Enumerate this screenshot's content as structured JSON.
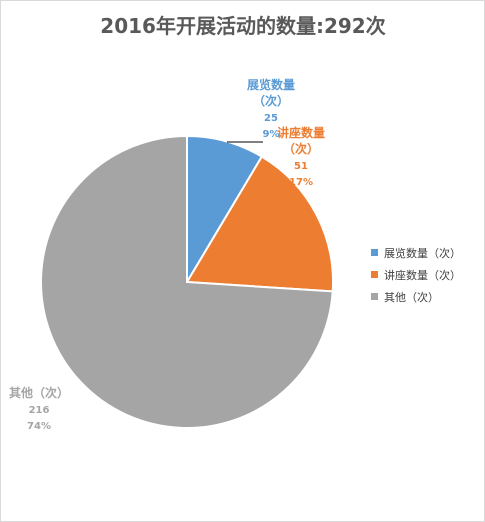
{
  "chart_data": {
    "type": "pie",
    "title": "2016年开展活动的数量:292次",
    "total": 292,
    "slices": [
      {
        "label_line1": "展览数量",
        "label_line2": "（次）",
        "legend": "展览数量（次）",
        "value": 25,
        "percent": "9%",
        "color": "#5B9BD5"
      },
      {
        "label_line1": "讲座数量",
        "label_line2": "（次）",
        "legend": "讲座数量（次）",
        "value": 51,
        "percent": "17%",
        "color": "#ED7D31"
      },
      {
        "label_line1": "其他（次）",
        "label_line2": "",
        "legend": "其他（次）",
        "value": 216,
        "percent": "74%",
        "color": "#A5A5A5"
      }
    ],
    "legend_position": "right",
    "start_angle": "12 o'clock, clockwise"
  }
}
